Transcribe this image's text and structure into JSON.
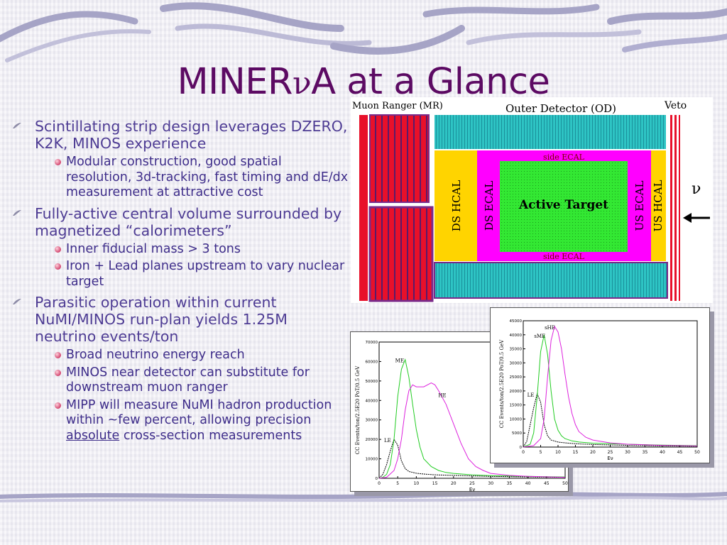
{
  "slide": {
    "title_pre": "MINER",
    "title_nu": "ν",
    "title_post": "A at a Glance"
  },
  "bullets": [
    {
      "text": "Scintillating strip design leverages DZERO, K2K, MINOS experience",
      "sub": [
        "Modular construction, good spatial resolution, 3d-tracking, fast timing and dE/dx measurement at attractive cost"
      ]
    },
    {
      "text": "Fully-active central volume surrounded by magnetized “calorimeters”",
      "sub": [
        "Inner fiducial mass > 3 tons",
        "Iron + Lead planes upstream to vary nuclear target"
      ]
    },
    {
      "text": "Parasitic operation within current NuMI/MINOS run-plan yields 1.25M neutrino events/ton",
      "sub": [
        "Broad neutrino energy reach",
        "MINOS near detector can substitute for downstream muon ranger"
      ],
      "sub_last": {
        "pre": "MIPP will measure NuMI hadron production within ~few percent, allowing precision ",
        "link": "absolute",
        "post": " cross-section measurements"
      }
    }
  ],
  "detector": {
    "muon_ranger": "Muon Ranger (MR)",
    "outer_detector": "Outer Detector (OD)",
    "veto": "Veto",
    "side_ecal_top": "side ECAL",
    "side_ecal_bottom": "side ECAL",
    "ds_hcal": "DS HCAL",
    "ds_ecal": "DS ECAL",
    "active_target": "Active Target",
    "us_ecal": "US ECAL",
    "us_hcal": "US HCAL",
    "nu": "ν",
    "arrow": "←",
    "colors": {
      "yellow": "#ffd400",
      "magenta": "#ff00ff",
      "green": "#33e833",
      "teal": "#2ec4c4",
      "red": "#e8102a",
      "purple": "#7a2a8a"
    }
  },
  "chart_data": [
    {
      "type": "line",
      "title": "",
      "xlabel": "Eν",
      "ylabel": "CC Events/ton/2.5E20 PoT/0.5 GeV",
      "xlim": [
        0,
        50
      ],
      "ylim": [
        0,
        70000
      ],
      "xticks": [
        "0",
        "5",
        "10",
        "15",
        "20",
        "25",
        "30",
        "35",
        "40",
        "45",
        "50"
      ],
      "yticks": [
        "0",
        "10000",
        "20000",
        "30000",
        "40000",
        "50000",
        "60000",
        "70000"
      ],
      "series": [
        {
          "name": "LE",
          "color": "#000000",
          "dash": true,
          "x": [
            0,
            1,
            2,
            3,
            4,
            5,
            6,
            7,
            8,
            10,
            12,
            15,
            20,
            25,
            30,
            40,
            50
          ],
          "y": [
            0,
            2000,
            7000,
            14000,
            20000,
            17000,
            9000,
            5000,
            3500,
            2600,
            2200,
            1800,
            1500,
            1200,
            1000,
            700,
            500
          ]
        },
        {
          "name": "ME",
          "color": "#22cc22",
          "x": [
            0,
            1,
            2,
            3,
            4,
            5,
            6,
            7,
            8,
            9,
            10,
            11,
            12,
            14,
            16,
            18,
            20,
            25,
            30,
            40,
            50
          ],
          "y": [
            0,
            500,
            2000,
            7000,
            20000,
            42000,
            56000,
            61000,
            52000,
            38000,
            25000,
            16000,
            10000,
            6000,
            4000,
            3000,
            2500,
            1800,
            1400,
            1000,
            700
          ]
        },
        {
          "name": "HE",
          "color": "#dd22dd",
          "x": [
            0,
            2,
            4,
            5,
            6,
            7,
            8,
            9,
            10,
            12,
            14,
            15,
            16,
            18,
            20,
            22,
            24,
            26,
            28,
            30,
            35,
            40,
            50
          ],
          "y": [
            0,
            500,
            4000,
            10000,
            20000,
            35000,
            45000,
            48000,
            47000,
            47000,
            49000,
            48000,
            45000,
            38000,
            28000,
            18000,
            10000,
            6000,
            4000,
            2500,
            1500,
            1000,
            500
          ]
        }
      ]
    },
    {
      "type": "line",
      "title": "",
      "xlabel": "Eν",
      "ylabel": "CC Events/ton/2.5E20 PoT/0.5 GeV",
      "xlim": [
        0,
        50
      ],
      "ylim": [
        0,
        45000
      ],
      "xticks": [
        "0",
        "5",
        "10",
        "15",
        "20",
        "25",
        "30",
        "35",
        "40",
        "45",
        "50"
      ],
      "yticks": [
        "0",
        "5000",
        "10000",
        "15000",
        "20000",
        "25000",
        "30000",
        "35000",
        "40000",
        "45000"
      ],
      "series": [
        {
          "name": "LE",
          "color": "#000000",
          "dash": true,
          "x": [
            0,
            1,
            2,
            3,
            4,
            5,
            6,
            7,
            8,
            10,
            12,
            15,
            20,
            30,
            40,
            50
          ],
          "y": [
            0,
            2000,
            8000,
            14000,
            19000,
            16000,
            8000,
            4000,
            2500,
            1800,
            1500,
            1200,
            900,
            600,
            400,
            300
          ]
        },
        {
          "name": "sME",
          "color": "#22cc22",
          "x": [
            0,
            2,
            3,
            4,
            5,
            6,
            7,
            8,
            9,
            10,
            11,
            12,
            14,
            16,
            20,
            25,
            30,
            40,
            50
          ],
          "y": [
            0,
            1000,
            5000,
            18000,
            34000,
            40000,
            33000,
            20000,
            10000,
            6000,
            4000,
            3000,
            2200,
            1800,
            1400,
            1200,
            1000,
            700,
            500
          ]
        },
        {
          "name": "sHE",
          "color": "#dd22dd",
          "x": [
            0,
            3,
            5,
            6,
            7,
            8,
            9,
            10,
            11,
            12,
            13,
            14,
            15,
            16,
            18,
            20,
            25,
            30,
            40,
            50
          ],
          "y": [
            0,
            500,
            3000,
            10000,
            25000,
            38000,
            43000,
            41000,
            35000,
            26000,
            18000,
            12000,
            8000,
            5500,
            3500,
            2500,
            1500,
            1000,
            600,
            400
          ]
        }
      ]
    }
  ]
}
